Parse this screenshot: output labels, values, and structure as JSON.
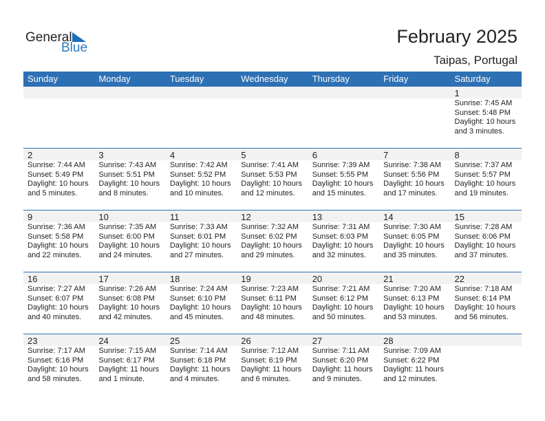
{
  "logo": {
    "line1": "General",
    "line2": "Blue"
  },
  "title": "February 2025",
  "location": "Taipas, Portugal",
  "colors": {
    "header": "#2e70b4",
    "band": "#f2f2f2"
  },
  "weekdays": [
    "Sunday",
    "Monday",
    "Tuesday",
    "Wednesday",
    "Thursday",
    "Friday",
    "Saturday"
  ],
  "weeks": [
    [
      null,
      null,
      null,
      null,
      null,
      null,
      {
        "day": "1",
        "sunrise": "Sunrise: 7:45 AM",
        "sunset": "Sunset: 5:48 PM",
        "daylight1": "Daylight: 10 hours",
        "daylight2": "and 3 minutes."
      }
    ],
    [
      {
        "day": "2",
        "sunrise": "Sunrise: 7:44 AM",
        "sunset": "Sunset: 5:49 PM",
        "daylight1": "Daylight: 10 hours",
        "daylight2": "and 5 minutes."
      },
      {
        "day": "3",
        "sunrise": "Sunrise: 7:43 AM",
        "sunset": "Sunset: 5:51 PM",
        "daylight1": "Daylight: 10 hours",
        "daylight2": "and 8 minutes."
      },
      {
        "day": "4",
        "sunrise": "Sunrise: 7:42 AM",
        "sunset": "Sunset: 5:52 PM",
        "daylight1": "Daylight: 10 hours",
        "daylight2": "and 10 minutes."
      },
      {
        "day": "5",
        "sunrise": "Sunrise: 7:41 AM",
        "sunset": "Sunset: 5:53 PM",
        "daylight1": "Daylight: 10 hours",
        "daylight2": "and 12 minutes."
      },
      {
        "day": "6",
        "sunrise": "Sunrise: 7:39 AM",
        "sunset": "Sunset: 5:55 PM",
        "daylight1": "Daylight: 10 hours",
        "daylight2": "and 15 minutes."
      },
      {
        "day": "7",
        "sunrise": "Sunrise: 7:38 AM",
        "sunset": "Sunset: 5:56 PM",
        "daylight1": "Daylight: 10 hours",
        "daylight2": "and 17 minutes."
      },
      {
        "day": "8",
        "sunrise": "Sunrise: 7:37 AM",
        "sunset": "Sunset: 5:57 PM",
        "daylight1": "Daylight: 10 hours",
        "daylight2": "and 19 minutes."
      }
    ],
    [
      {
        "day": "9",
        "sunrise": "Sunrise: 7:36 AM",
        "sunset": "Sunset: 5:58 PM",
        "daylight1": "Daylight: 10 hours",
        "daylight2": "and 22 minutes."
      },
      {
        "day": "10",
        "sunrise": "Sunrise: 7:35 AM",
        "sunset": "Sunset: 6:00 PM",
        "daylight1": "Daylight: 10 hours",
        "daylight2": "and 24 minutes."
      },
      {
        "day": "11",
        "sunrise": "Sunrise: 7:33 AM",
        "sunset": "Sunset: 6:01 PM",
        "daylight1": "Daylight: 10 hours",
        "daylight2": "and 27 minutes."
      },
      {
        "day": "12",
        "sunrise": "Sunrise: 7:32 AM",
        "sunset": "Sunset: 6:02 PM",
        "daylight1": "Daylight: 10 hours",
        "daylight2": "and 29 minutes."
      },
      {
        "day": "13",
        "sunrise": "Sunrise: 7:31 AM",
        "sunset": "Sunset: 6:03 PM",
        "daylight1": "Daylight: 10 hours",
        "daylight2": "and 32 minutes."
      },
      {
        "day": "14",
        "sunrise": "Sunrise: 7:30 AM",
        "sunset": "Sunset: 6:05 PM",
        "daylight1": "Daylight: 10 hours",
        "daylight2": "and 35 minutes."
      },
      {
        "day": "15",
        "sunrise": "Sunrise: 7:28 AM",
        "sunset": "Sunset: 6:06 PM",
        "daylight1": "Daylight: 10 hours",
        "daylight2": "and 37 minutes."
      }
    ],
    [
      {
        "day": "16",
        "sunrise": "Sunrise: 7:27 AM",
        "sunset": "Sunset: 6:07 PM",
        "daylight1": "Daylight: 10 hours",
        "daylight2": "and 40 minutes."
      },
      {
        "day": "17",
        "sunrise": "Sunrise: 7:26 AM",
        "sunset": "Sunset: 6:08 PM",
        "daylight1": "Daylight: 10 hours",
        "daylight2": "and 42 minutes."
      },
      {
        "day": "18",
        "sunrise": "Sunrise: 7:24 AM",
        "sunset": "Sunset: 6:10 PM",
        "daylight1": "Daylight: 10 hours",
        "daylight2": "and 45 minutes."
      },
      {
        "day": "19",
        "sunrise": "Sunrise: 7:23 AM",
        "sunset": "Sunset: 6:11 PM",
        "daylight1": "Daylight: 10 hours",
        "daylight2": "and 48 minutes."
      },
      {
        "day": "20",
        "sunrise": "Sunrise: 7:21 AM",
        "sunset": "Sunset: 6:12 PM",
        "daylight1": "Daylight: 10 hours",
        "daylight2": "and 50 minutes."
      },
      {
        "day": "21",
        "sunrise": "Sunrise: 7:20 AM",
        "sunset": "Sunset: 6:13 PM",
        "daylight1": "Daylight: 10 hours",
        "daylight2": "and 53 minutes."
      },
      {
        "day": "22",
        "sunrise": "Sunrise: 7:18 AM",
        "sunset": "Sunset: 6:14 PM",
        "daylight1": "Daylight: 10 hours",
        "daylight2": "and 56 minutes."
      }
    ],
    [
      {
        "day": "23",
        "sunrise": "Sunrise: 7:17 AM",
        "sunset": "Sunset: 6:16 PM",
        "daylight1": "Daylight: 10 hours",
        "daylight2": "and 58 minutes."
      },
      {
        "day": "24",
        "sunrise": "Sunrise: 7:15 AM",
        "sunset": "Sunset: 6:17 PM",
        "daylight1": "Daylight: 11 hours",
        "daylight2": "and 1 minute."
      },
      {
        "day": "25",
        "sunrise": "Sunrise: 7:14 AM",
        "sunset": "Sunset: 6:18 PM",
        "daylight1": "Daylight: 11 hours",
        "daylight2": "and 4 minutes."
      },
      {
        "day": "26",
        "sunrise": "Sunrise: 7:12 AM",
        "sunset": "Sunset: 6:19 PM",
        "daylight1": "Daylight: 11 hours",
        "daylight2": "and 6 minutes."
      },
      {
        "day": "27",
        "sunrise": "Sunrise: 7:11 AM",
        "sunset": "Sunset: 6:20 PM",
        "daylight1": "Daylight: 11 hours",
        "daylight2": "and 9 minutes."
      },
      {
        "day": "28",
        "sunrise": "Sunrise: 7:09 AM",
        "sunset": "Sunset: 6:22 PM",
        "daylight1": "Daylight: 11 hours",
        "daylight2": "and 12 minutes."
      },
      null
    ]
  ]
}
